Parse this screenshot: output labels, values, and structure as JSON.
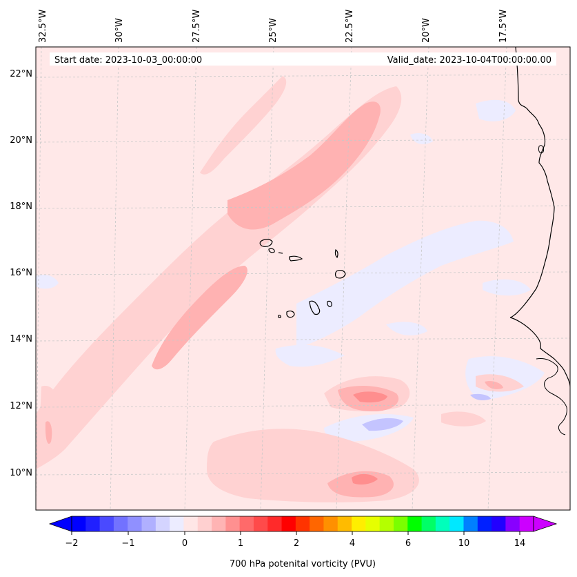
{
  "header": {
    "start_date": "Start date: 2023-10-03_00:00:00",
    "valid_date": "Valid_date: 2023-10-04T00:00:00.00"
  },
  "map": {
    "lon_labels": [
      "32.5°W",
      "30°W",
      "27.5°W",
      "25°W",
      "22.5°W",
      "20°W",
      "17.5°W"
    ],
    "lat_labels": [
      "22°N",
      "20°N",
      "18°N",
      "16°N",
      "14°N",
      "12°N",
      "10°N"
    ],
    "extent": {
      "lon_min": -33.0,
      "lon_max": -15.7,
      "lat_min": 8.9,
      "lat_max": 22.8
    },
    "islands": [
      "Santo Antao",
      "Sao Vicente",
      "Santa Luzia",
      "Sao Nicolau",
      "Sal",
      "Boa Vista",
      "Maio",
      "Santiago",
      "Fogo",
      "Brava"
    ]
  },
  "colorbar": {
    "label": "700 hPa potenital vorticity (PVU)",
    "tick_labels": [
      "−2",
      "−1",
      "0",
      "1",
      "2",
      "4",
      "6",
      "10",
      "14"
    ],
    "colors": [
      "#0000ff",
      "#2020ff",
      "#4a4aff",
      "#7272ff",
      "#9090ff",
      "#b0b0ff",
      "#d4d4ff",
      "#ececff",
      "#ffe6e6",
      "#ffd0d0",
      "#ffb4b4",
      "#ff9090",
      "#ff6a6a",
      "#ff4a4a",
      "#ff2a2a",
      "#ff0000",
      "#ff3300",
      "#ff6600",
      "#ff9000",
      "#ffbb00",
      "#ffee00",
      "#e6ff00",
      "#b4ff00",
      "#7aff00",
      "#00ff00",
      "#00ff66",
      "#00ffbb",
      "#00e8ff",
      "#0080ff",
      "#0020ff",
      "#2200ff",
      "#8800ff",
      "#cc00ff"
    ],
    "under_color": "#0000ff",
    "over_color": "#cc00ff"
  },
  "palette": {
    "background": "#ffe8e8",
    "light_pink": "#ffd2d2",
    "mid_pink": "#ffb2b2",
    "strong_pink": "#ff8e8e",
    "light_blue": "#ececff",
    "mid_blue": "#c4c4ff",
    "coast": "#000000",
    "grid": "#c8c8c8"
  }
}
